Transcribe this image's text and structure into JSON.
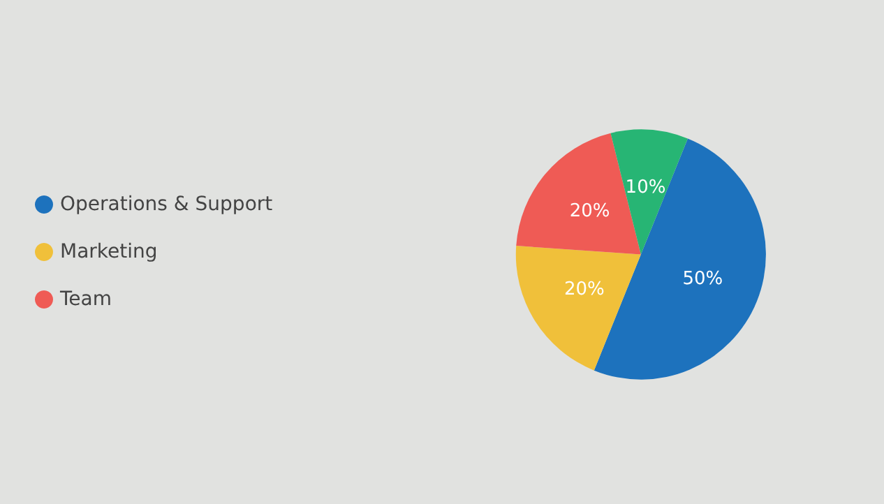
{
  "chart_data": {
    "type": "pie",
    "categories": [
      "Operations & Support",
      "Marketing",
      "Team",
      null
    ],
    "values": [
      50,
      20,
      20,
      10
    ],
    "value_labels": [
      "50%",
      "20%",
      "20%",
      "10%"
    ],
    "colors": [
      "#1d72bd",
      "#f0c03a",
      "#ef5b55",
      "#27b574"
    ],
    "legend": "left"
  }
}
